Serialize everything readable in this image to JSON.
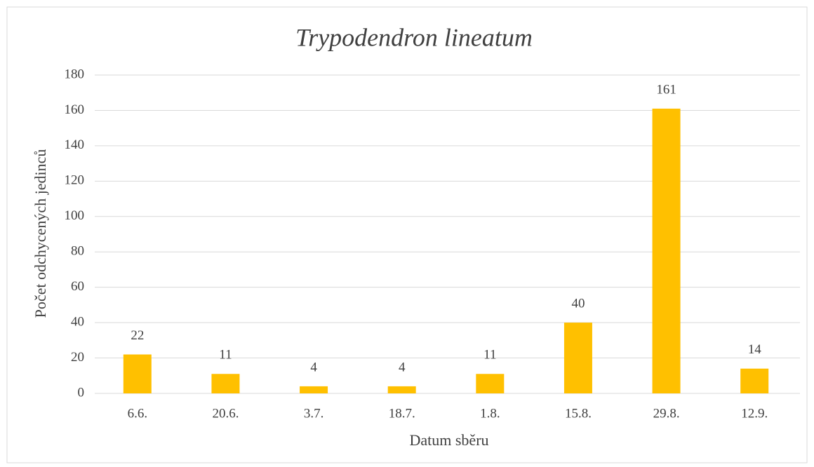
{
  "chart_data": {
    "type": "bar",
    "title": "Trypodendron lineatum",
    "x_label": "Datum sběru",
    "y_label": "Počet odchycených jedinců",
    "categories": [
      "6.6.",
      "20.6.",
      "3.7.",
      "18.7.",
      "1.8.",
      "15.8.",
      "29.8.",
      "12.9."
    ],
    "values": [
      22,
      11,
      4,
      4,
      11,
      40,
      161,
      14
    ],
    "color": "#ffc000",
    "ylim": [
      0,
      180
    ],
    "yticks": [
      0,
      20,
      40,
      60,
      80,
      100,
      120,
      140,
      160,
      180
    ],
    "grid": true
  }
}
